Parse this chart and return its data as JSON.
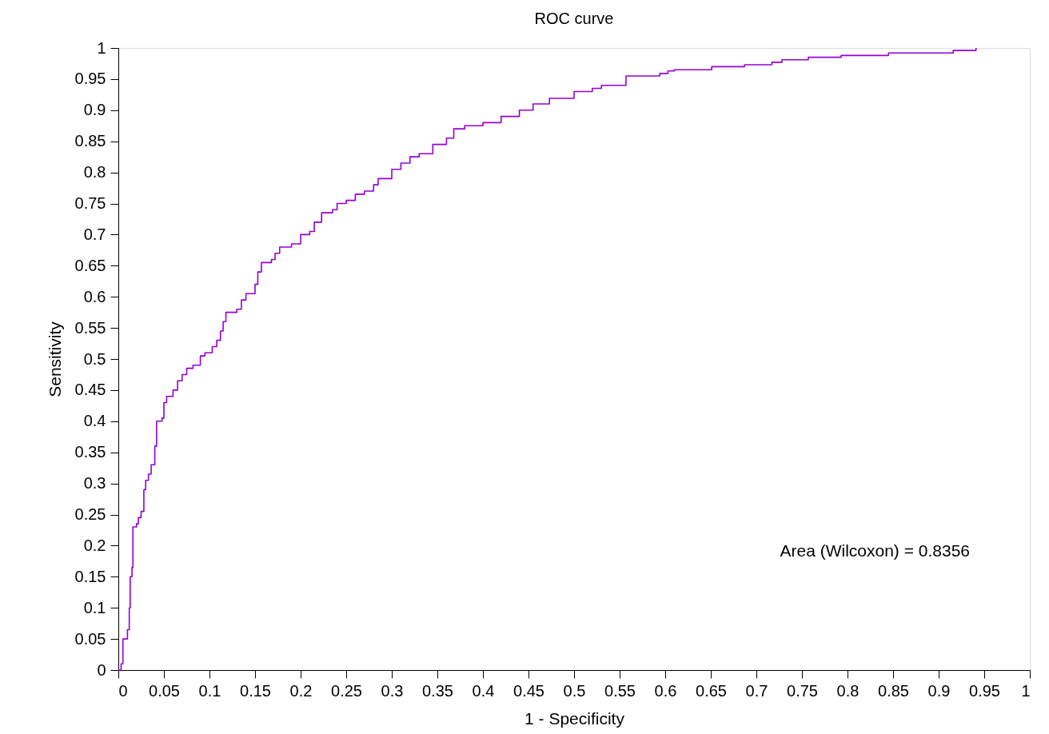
{
  "chart_data": {
    "type": "step",
    "title": "ROC curve",
    "xlabel": "1 - Specificity",
    "ylabel": "Sensitivity",
    "xlim": [
      0,
      1
    ],
    "ylim": [
      0,
      1
    ],
    "xticks": [
      0,
      0.05,
      0.1,
      0.15,
      0.2,
      0.25,
      0.3,
      0.35,
      0.4,
      0.45,
      0.5,
      0.55,
      0.6,
      0.65,
      0.7,
      0.75,
      0.8,
      0.85,
      0.9,
      0.95,
      1
    ],
    "yticks": [
      0,
      0.05,
      0.1,
      0.15,
      0.2,
      0.25,
      0.3,
      0.35,
      0.4,
      0.45,
      0.5,
      0.55,
      0.6,
      0.65,
      0.7,
      0.75,
      0.8,
      0.85,
      0.9,
      0.95,
      1
    ],
    "grid": false,
    "marker": "none",
    "line_style": "solid",
    "annotations": [
      "Area (Wilcoxon) = 0.8356"
    ],
    "series": [
      {
        "color": "#9400d3",
        "x": [
          0,
          0.003,
          0.005,
          0.01,
          0.012,
          0.013,
          0.015,
          0.016,
          0.02,
          0.022,
          0.025,
          0.028,
          0.03,
          0.033,
          0.036,
          0.04,
          0.042,
          0.048,
          0.05,
          0.053,
          0.06,
          0.065,
          0.07,
          0.075,
          0.082,
          0.09,
          0.095,
          0.103,
          0.108,
          0.112,
          0.115,
          0.118,
          0.13,
          0.135,
          0.14,
          0.15,
          0.153,
          0.157,
          0.168,
          0.172,
          0.177,
          0.19,
          0.2,
          0.21,
          0.215,
          0.223,
          0.235,
          0.24,
          0.25,
          0.26,
          0.27,
          0.28,
          0.285,
          0.3,
          0.31,
          0.32,
          0.33,
          0.345,
          0.36,
          0.368,
          0.38,
          0.4,
          0.42,
          0.44,
          0.455,
          0.473,
          0.5,
          0.52,
          0.53,
          0.557,
          0.594,
          0.603,
          0.61,
          0.651,
          0.687,
          0.717,
          0.728,
          0.757,
          0.793,
          0.845,
          0.916,
          0.941
        ],
        "values": [
          0,
          0.01,
          0.05,
          0.065,
          0.1,
          0.15,
          0.165,
          0.23,
          0.235,
          0.245,
          0.255,
          0.29,
          0.305,
          0.315,
          0.33,
          0.36,
          0.4,
          0.405,
          0.43,
          0.44,
          0.45,
          0.465,
          0.475,
          0.485,
          0.49,
          0.505,
          0.51,
          0.52,
          0.53,
          0.545,
          0.56,
          0.575,
          0.58,
          0.595,
          0.605,
          0.62,
          0.64,
          0.655,
          0.66,
          0.67,
          0.68,
          0.685,
          0.7,
          0.705,
          0.72,
          0.735,
          0.74,
          0.75,
          0.755,
          0.765,
          0.77,
          0.78,
          0.79,
          0.805,
          0.815,
          0.825,
          0.83,
          0.845,
          0.855,
          0.87,
          0.875,
          0.88,
          0.89,
          0.9,
          0.91,
          0.919,
          0.93,
          0.935,
          0.94,
          0.955,
          0.959,
          0.963,
          0.965,
          0.97,
          0.973,
          0.977,
          0.981,
          0.985,
          0.988,
          0.992,
          0.996,
          1.0
        ]
      }
    ]
  }
}
